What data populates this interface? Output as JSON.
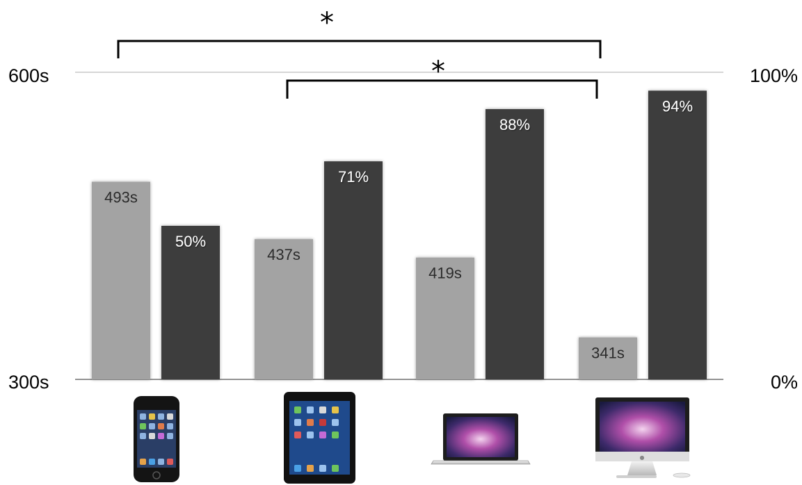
{
  "chart_data": {
    "type": "bar",
    "title": "",
    "xlabel": "",
    "ylabel": "",
    "categories": [
      "iPod touch",
      "iPad",
      "MacBook Pro",
      "iMac"
    ],
    "categories_displayed_as": "device-images",
    "series": [
      {
        "axis": "left",
        "unit": "s",
        "values": [
          493,
          437,
          419,
          341
        ],
        "labels": [
          "493s",
          "437s",
          "419s",
          "341s"
        ],
        "color": "#a3a3a3"
      },
      {
        "axis": "right",
        "unit": "%",
        "values": [
          50,
          71,
          88,
          94
        ],
        "labels": [
          "50%",
          "71%",
          "88%",
          "94%"
        ],
        "color": "#3d3d3d"
      }
    ],
    "left_axis": {
      "range": [
        300,
        600
      ],
      "ticks": [
        {
          "value": 600,
          "label": "600s"
        },
        {
          "value": 300,
          "label": "300s"
        }
      ]
    },
    "right_axis": {
      "range": [
        0,
        100
      ],
      "ticks": [
        {
          "value": 100,
          "label": "100%"
        },
        {
          "value": 0,
          "label": "0%"
        }
      ]
    },
    "grid": true,
    "legend": "none",
    "significance": [
      {
        "from": "iPod touch",
        "to": "iMac",
        "series": "left",
        "label": "*"
      },
      {
        "from": "iPad",
        "to": "iMac",
        "series": "left",
        "label": "*"
      }
    ]
  }
}
